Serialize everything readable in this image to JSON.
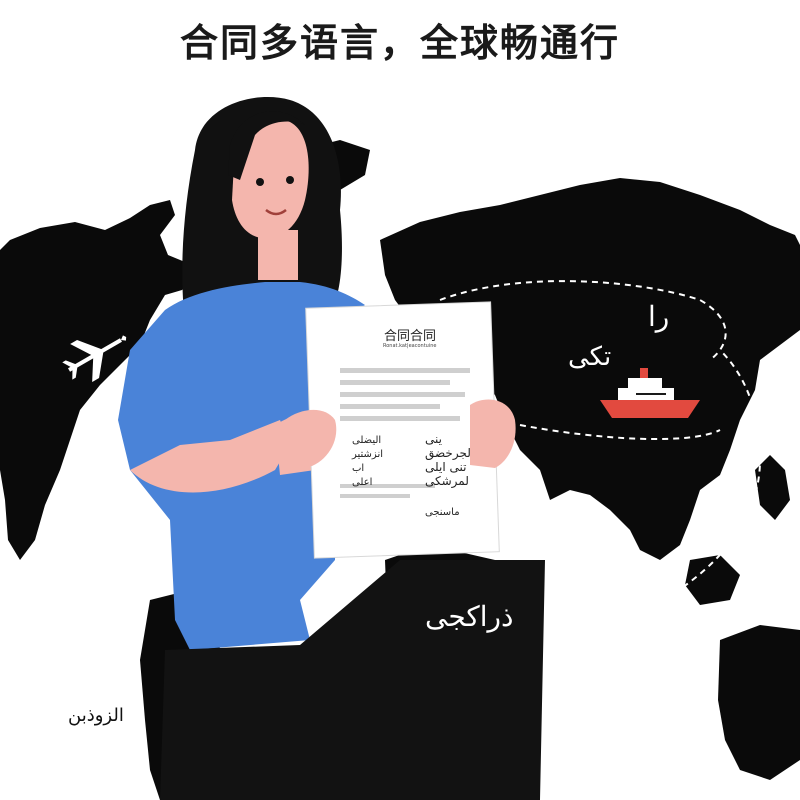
{
  "title": "合同多语言，全球畅通行",
  "document": {
    "heading": "合同合同",
    "subheading": "Ronat.kat|eacontuine",
    "left_lines": [
      "الیضلی",
      "انزشتیر",
      "اب",
      "اعلی"
    ],
    "right_lines": [
      "ینی",
      "لجرخضق",
      "تنی ایلی",
      "لمرشکی"
    ],
    "signature": "ماسنجی"
  },
  "map_labels": {
    "asia_top": "را",
    "asia_mid": "تكی",
    "africa": "ذراكجی",
    "bottom_left": "الزوذبن"
  },
  "icons": [
    "airplane-icon",
    "ship-icon"
  ],
  "colors": {
    "shirt": "#4a83d8",
    "hair": "#111111",
    "skin": "#f4b6ad",
    "map": "#0a0a0a",
    "pants": "#121212",
    "ship_hull": "#e24a3f"
  }
}
